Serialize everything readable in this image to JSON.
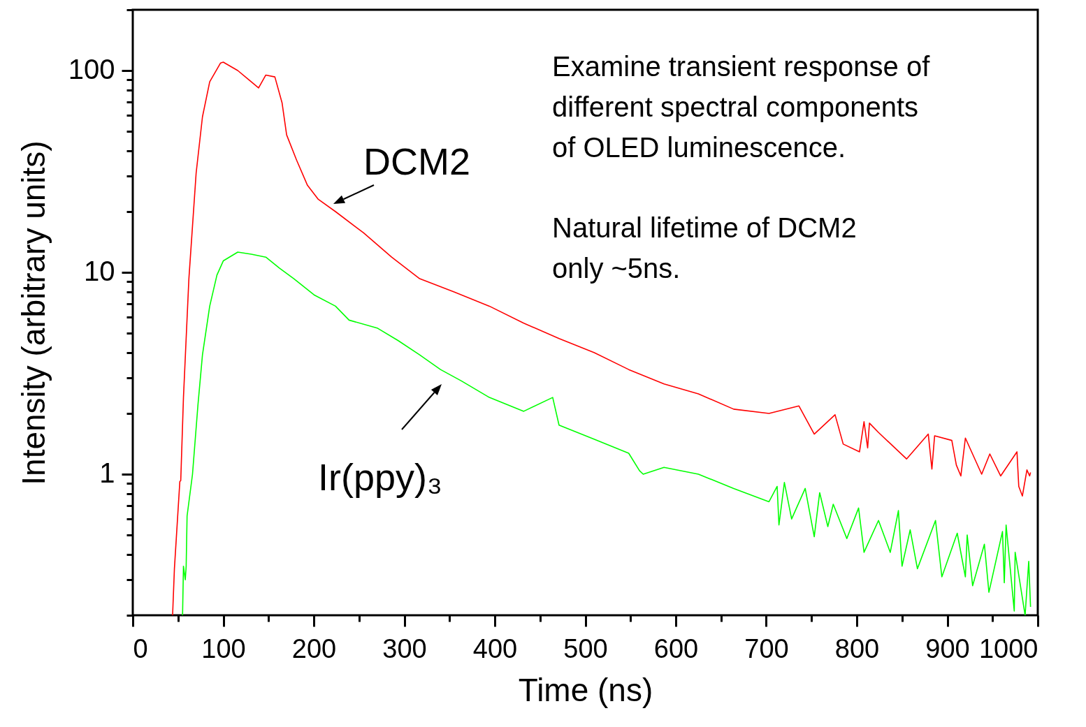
{
  "chart_data": {
    "type": "line",
    "xlabel": "Time (ns)",
    "ylabel": "Intensity (arbitrary units)",
    "log": "y",
    "grid": false,
    "marker": "none",
    "line_style": "solid",
    "xlim": [
      0,
      1000
    ],
    "xticks": [
      0,
      {
        "value": 50,
        "label": null
      },
      100,
      {
        "value": 150,
        "label": null
      },
      200,
      {
        "value": 250,
        "label": null
      },
      300,
      {
        "value": 350,
        "label": null
      },
      400,
      {
        "value": 450,
        "label": null
      },
      500,
      {
        "value": 550,
        "label": null
      },
      600,
      {
        "value": 650,
        "label": null
      },
      700,
      {
        "value": 750,
        "label": null
      },
      800,
      {
        "value": 850,
        "label": null
      },
      900,
      {
        "value": 950,
        "label": null
      },
      1000
    ],
    "ylim": [
      0.2,
      200
    ],
    "yticks": [
      {
        "value": 0.2,
        "label": null
      },
      {
        "value": 0.3,
        "label": null
      },
      {
        "value": 0.4,
        "label": null
      },
      {
        "value": 0.5,
        "label": null
      },
      {
        "value": 0.6,
        "label": null
      },
      {
        "value": 0.7,
        "label": null
      },
      {
        "value": 0.8,
        "label": null
      },
      {
        "value": 0.9,
        "label": null
      },
      1,
      {
        "value": 2,
        "label": null
      },
      {
        "value": 3,
        "label": null
      },
      {
        "value": 4,
        "label": null
      },
      {
        "value": 5,
        "label": null
      },
      {
        "value": 6,
        "label": null
      },
      {
        "value": 7,
        "label": null
      },
      {
        "value": 8,
        "label": null
      },
      {
        "value": 9,
        "label": null
      },
      10,
      {
        "value": 20,
        "label": null
      },
      {
        "value": 30,
        "label": null
      },
      {
        "value": 40,
        "label": null
      },
      {
        "value": 50,
        "label": null
      },
      {
        "value": 60,
        "label": null
      },
      {
        "value": 70,
        "label": null
      },
      {
        "value": 80,
        "label": null
      },
      {
        "value": 90,
        "label": null
      },
      100,
      {
        "value": 200,
        "label": null
      }
    ],
    "series": [
      {
        "name": "DCM2",
        "color": "#ff0000",
        "x": [
          44,
          46,
          52,
          53,
          56,
          62,
          70,
          77,
          85,
          97,
          100,
          116,
          127,
          139,
          147,
          157,
          165,
          170,
          181,
          193,
          205,
          224,
          255,
          286,
          317,
          355,
          394,
          432,
          471,
          510,
          548,
          587,
          625,
          664,
          703,
          736,
          753,
          776,
          785,
          803,
          808,
          812,
          814,
          824,
          855,
          879,
          883,
          886,
          905,
          910,
          915,
          920,
          938,
          947,
          959,
          977,
          979,
          983,
          988,
          991,
          992
        ],
        "values": [
          0.2,
          0.34,
          0.92,
          0.93,
          2.4,
          9.3,
          31,
          59,
          88,
          109,
          110,
          100,
          91,
          82,
          95,
          93,
          69,
          48,
          36,
          27,
          23,
          20,
          15.7,
          11.9,
          9.3,
          8,
          6.8,
          5.6,
          4.7,
          4,
          3.3,
          2.8,
          2.5,
          2.1,
          2,
          2.18,
          1.58,
          1.97,
          1.41,
          1.29,
          1.82,
          1.35,
          1.79,
          1.61,
          1.19,
          1.58,
          1.06,
          1.55,
          1.47,
          1.11,
          0.98,
          1.51,
          1,
          1.26,
          0.98,
          1.29,
          0.87,
          0.78,
          1.05,
          0.98,
          1.02
        ]
      },
      {
        "name": "Ir(ppy)₃",
        "color": "#00ff00",
        "x": [
          55,
          56,
          58,
          59,
          60,
          66,
          72,
          77,
          85,
          93,
          100,
          116,
          131,
          147,
          162,
          178,
          201,
          224,
          239,
          270,
          293,
          317,
          340,
          363,
          394,
          432,
          464,
          471,
          510,
          548,
          560,
          564,
          587,
          625,
          664,
          703,
          712,
          714,
          720,
          728,
          743,
          753,
          759,
          768,
          774,
          789,
          802,
          808,
          824,
          837,
          846,
          850,
          859,
          867,
          887,
          894,
          911,
          920,
          922,
          928,
          941,
          946,
          961,
          963,
          965,
          974,
          975,
          986,
          990,
          992
        ],
        "values": [
          0.2,
          0.35,
          0.3,
          0.35,
          0.62,
          1,
          2.2,
          3.9,
          6.8,
          9.7,
          11.4,
          12.6,
          12.3,
          11.9,
          10.5,
          9.3,
          7.7,
          6.8,
          5.8,
          5.3,
          4.6,
          3.9,
          3.3,
          2.9,
          2.4,
          2.05,
          2.4,
          1.75,
          1.49,
          1.27,
          1.04,
          1,
          1.08,
          1,
          0.85,
          0.73,
          0.87,
          0.56,
          0.91,
          0.6,
          0.85,
          0.49,
          0.81,
          0.55,
          0.71,
          0.48,
          0.68,
          0.41,
          0.59,
          0.41,
          0.66,
          0.35,
          0.53,
          0.34,
          0.59,
          0.31,
          0.51,
          0.31,
          0.5,
          0.28,
          0.45,
          0.26,
          0.52,
          0.29,
          0.56,
          0.21,
          0.41,
          0.2,
          0.37,
          0.22
        ]
      }
    ],
    "annotations": [
      "Examine transient response of\ndifferent spectral components\nof OLED luminescence.",
      "Natural lifetime of DCM2\nonly ~5ns."
    ]
  }
}
